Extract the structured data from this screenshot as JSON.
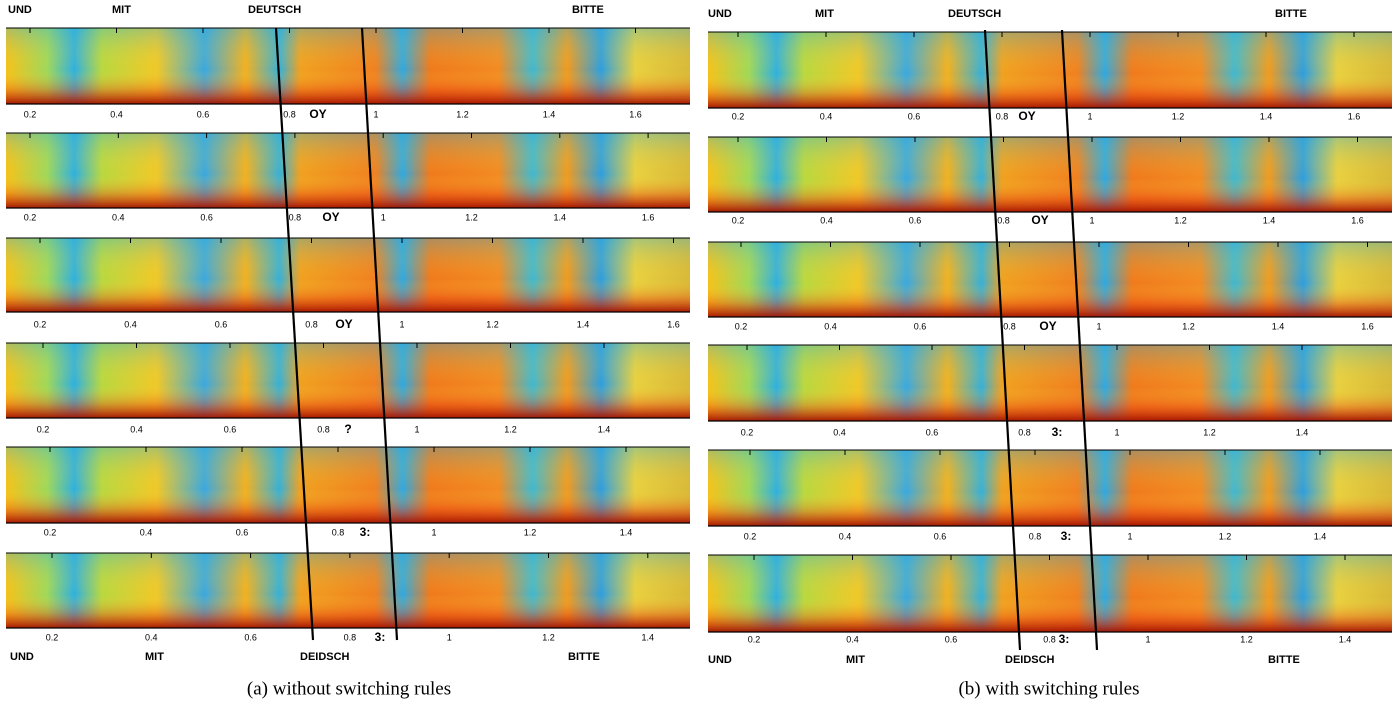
{
  "panels": [
    {
      "caption": "(a) without switching rules",
      "top_words": [
        "UND",
        "MIT",
        "DEUTSCH",
        "BITTE"
      ],
      "bottom_words": [
        "UND",
        "MIT",
        "DEIDSCH",
        "BITTE"
      ],
      "strips": [
        {
          "ticks": [
            "0.2",
            "0.4",
            "0.6",
            "0.8",
            "1",
            "1.2",
            "1.4",
            "1.6"
          ],
          "phone": "OY"
        },
        {
          "ticks": [
            "0.2",
            "0.4",
            "0.6",
            "0.8",
            "1",
            "1.2",
            "1.4",
            "1.6"
          ],
          "phone": "OY"
        },
        {
          "ticks": [
            "0.2",
            "0.4",
            "0.6",
            "0.8",
            "1",
            "1.2",
            "1.4",
            "1.6"
          ],
          "phone": "OY"
        },
        {
          "ticks": [
            "0.2",
            "0.4",
            "0.6",
            "0.8",
            "1",
            "1.2",
            "1.4"
          ],
          "phone": "?"
        },
        {
          "ticks": [
            "0.2",
            "0.4",
            "0.6",
            "0.8",
            "1",
            "1.2",
            "1.4"
          ],
          "phone": "3:"
        },
        {
          "ticks": [
            "0.2",
            "0.4",
            "0.6",
            "0.8",
            "1",
            "1.2",
            "1.4"
          ],
          "phone": "3:"
        }
      ]
    },
    {
      "caption": "(b) with switching rules",
      "top_words": [
        "UND",
        "MIT",
        "DEUTSCH",
        "BITTE"
      ],
      "bottom_words": [
        "UND",
        "MIT",
        "DEIDSCH",
        "BITTE"
      ],
      "strips": [
        {
          "ticks": [
            "0.2",
            "0.4",
            "0.6",
            "0.8",
            "1",
            "1.2",
            "1.4",
            "1.6"
          ],
          "phone": "OY"
        },
        {
          "ticks": [
            "0.2",
            "0.4",
            "0.6",
            "0.8",
            "1",
            "1.2",
            "1.4",
            "1.6"
          ],
          "phone": "OY"
        },
        {
          "ticks": [
            "0.2",
            "0.4",
            "0.6",
            "0.8",
            "1",
            "1.2",
            "1.4",
            "1.6"
          ],
          "phone": "OY"
        },
        {
          "ticks": [
            "0.2",
            "0.4",
            "0.6",
            "0.8",
            "1",
            "1.2",
            "1.4"
          ],
          "phone": "3:"
        },
        {
          "ticks": [
            "0.2",
            "0.4",
            "0.6",
            "0.8",
            "1",
            "1.2",
            "1.4"
          ],
          "phone": "3:"
        },
        {
          "ticks": [
            "0.2",
            "0.4",
            "0.6",
            "0.8",
            "1",
            "1.2",
            "1.4"
          ],
          "phone": "3:"
        }
      ]
    }
  ]
}
